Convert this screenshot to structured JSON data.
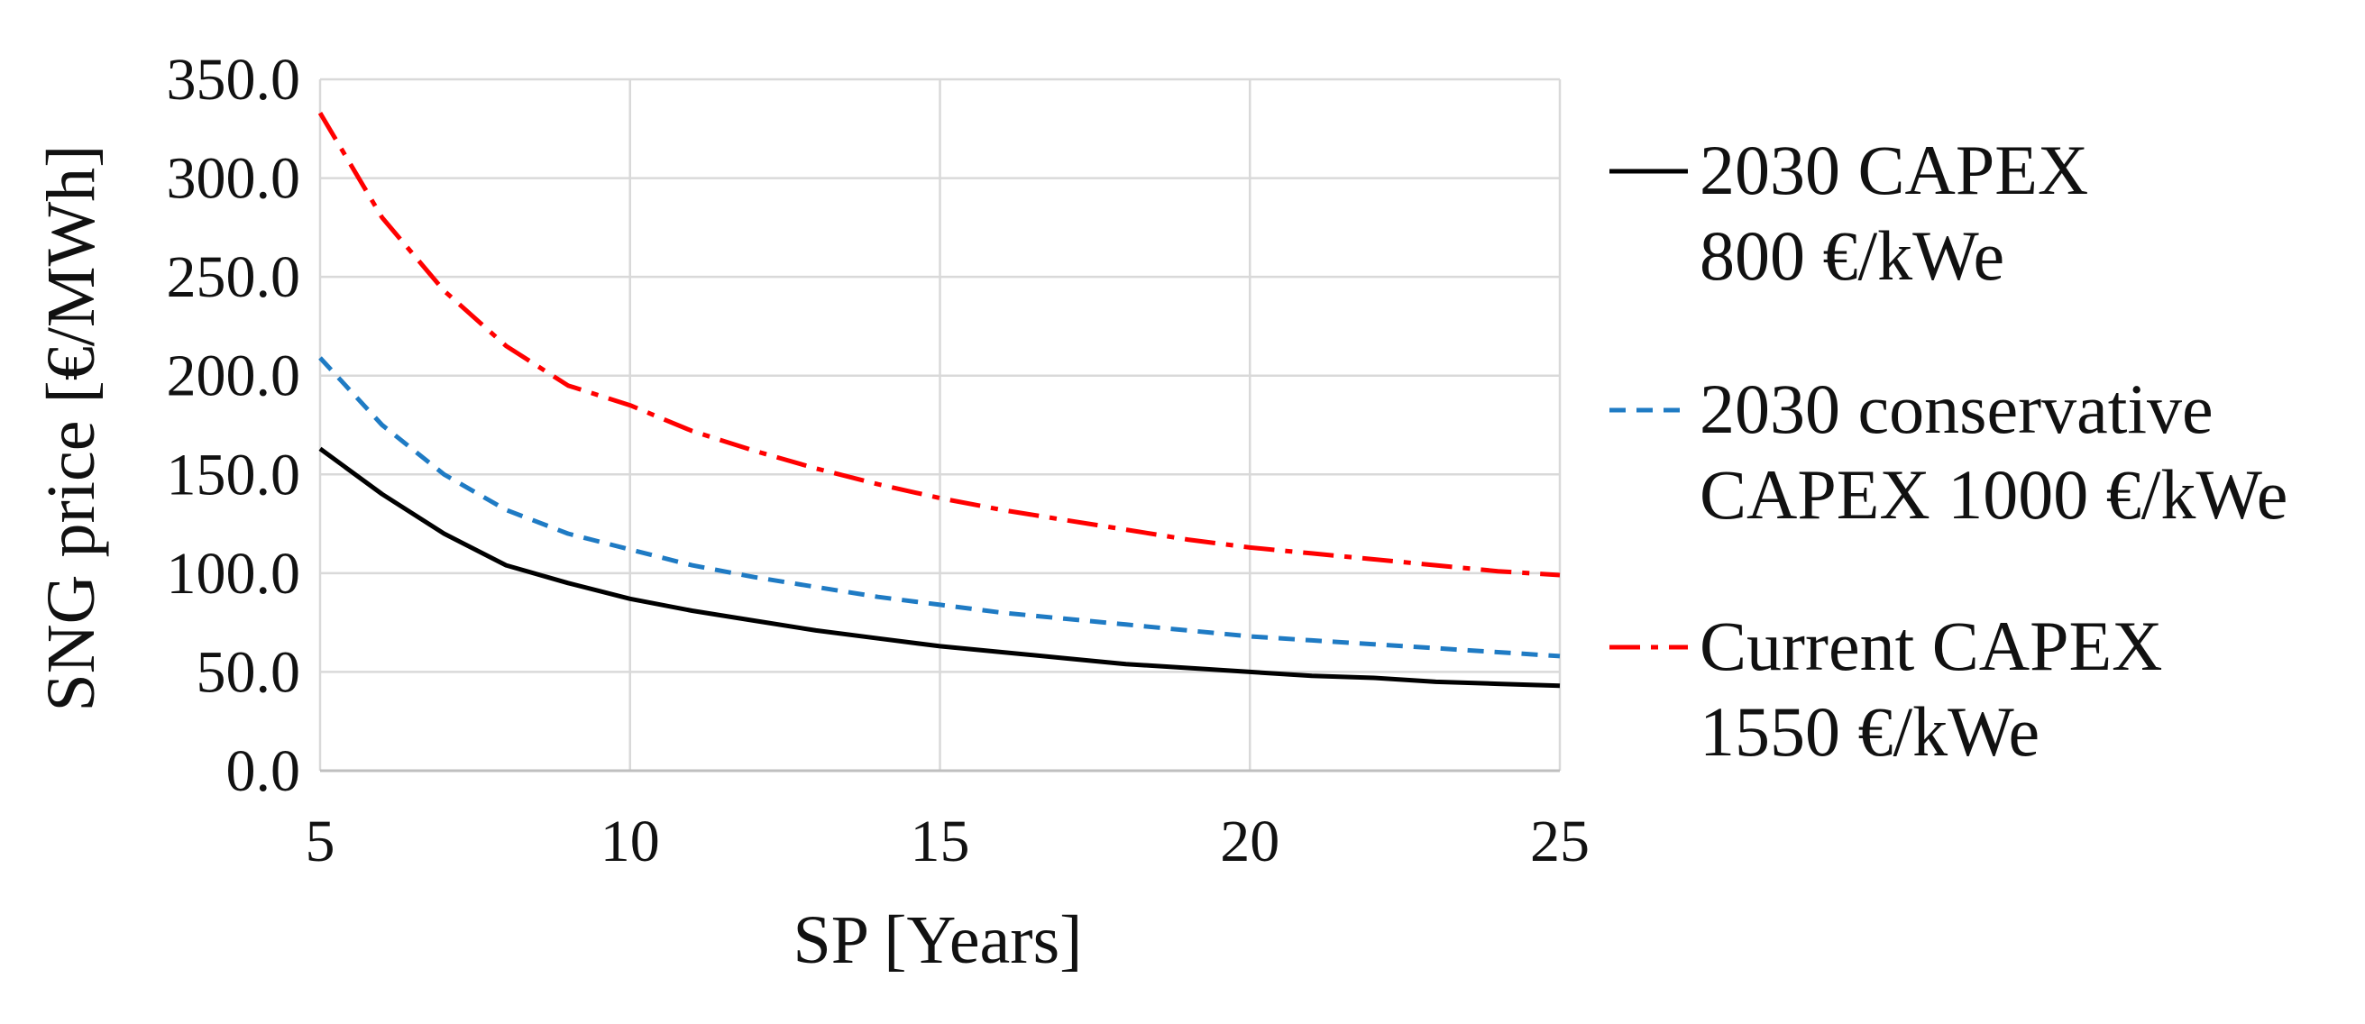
{
  "chart_data": {
    "type": "line",
    "title": "",
    "xlabel": "SP [Years]",
    "ylabel": "SNG price [€/MWh]",
    "xlim": [
      5,
      25
    ],
    "ylim": [
      0,
      350
    ],
    "x_ticks": [
      5,
      10,
      15,
      20,
      25
    ],
    "y_ticks": [
      0,
      50,
      100,
      150,
      200,
      250,
      300,
      350
    ],
    "x_tick_labels": [
      "5",
      "10",
      "15",
      "20",
      "25"
    ],
    "y_tick_labels": [
      "0.0",
      "50.0",
      "100.0",
      "150.0",
      "200.0",
      "250.0",
      "300.0",
      "350.0"
    ],
    "grid": true,
    "legend_position": "right",
    "x": [
      5,
      6,
      7,
      8,
      9,
      10,
      11,
      12,
      13,
      14,
      15,
      16,
      17,
      18,
      19,
      20,
      21,
      22,
      23,
      24,
      25
    ],
    "series": [
      {
        "name_lines": [
          "2030 CAPEX",
          "800 €/kWe"
        ],
        "color": "#000000",
        "dash": "solid",
        "values": [
          163,
          140,
          120,
          104,
          95,
          87,
          81,
          76,
          71,
          67,
          63,
          60,
          57,
          54,
          52,
          50,
          48,
          47,
          45,
          44,
          43
        ]
      },
      {
        "name_lines": [
          "2030 conservative",
          "CAPEX 1000 €/kWe"
        ],
        "color": "#1f7bc4",
        "dash": "dashed",
        "values": [
          209,
          175,
          150,
          132,
          120,
          112,
          104,
          98,
          93,
          88,
          84,
          80,
          77,
          74,
          71,
          68,
          66,
          64,
          62,
          60,
          58
        ]
      },
      {
        "name_lines": [
          "Current CAPEX",
          "1550 €/kWe"
        ],
        "color": "#ff0000",
        "dash": "dashdot",
        "values": [
          333,
          280,
          243,
          215,
          195,
          185,
          172,
          162,
          153,
          145,
          138,
          132,
          127,
          122,
          117,
          113,
          110,
          107,
          104,
          101,
          99
        ]
      }
    ]
  }
}
